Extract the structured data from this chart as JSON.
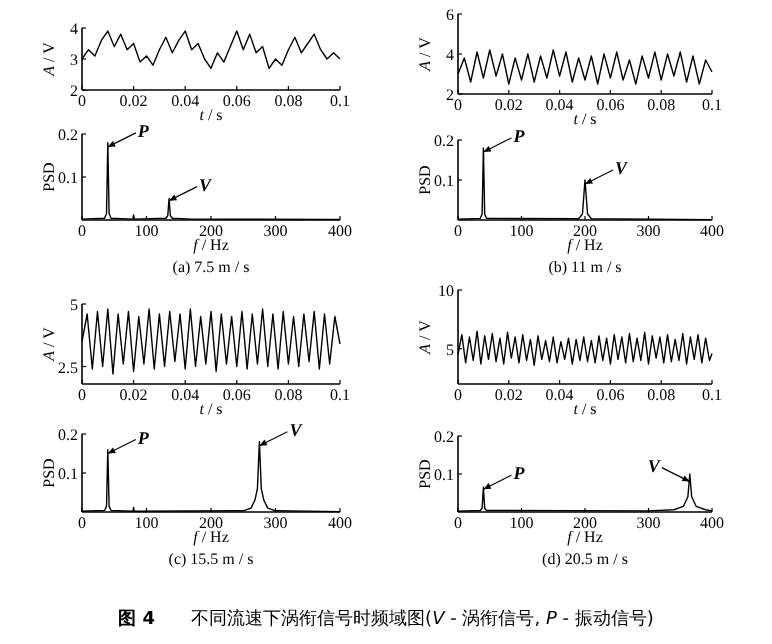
{
  "chart_data": [
    {
      "type": "line",
      "xlabel": "*t* / s",
      "ylabel": "*A* / V",
      "color": "#000000",
      "xlim": [
        0,
        0.1
      ],
      "ylim": [
        2,
        4
      ],
      "xticks": [
        0,
        0.02,
        0.04,
        0.06,
        0.08,
        0.1
      ],
      "yticks": [
        2,
        3,
        4
      ],
      "x": [
        0,
        0.0025,
        0.005,
        0.0075,
        0.01,
        0.0125,
        0.015,
        0.0175,
        0.02,
        0.0225,
        0.025,
        0.0275,
        0.03,
        0.0325,
        0.035,
        0.0375,
        0.04,
        0.0425,
        0.045,
        0.0475,
        0.05,
        0.0525,
        0.055,
        0.0575,
        0.06,
        0.0625,
        0.065,
        0.0675,
        0.07,
        0.0725,
        0.075,
        0.0775,
        0.08,
        0.0825,
        0.085,
        0.0875,
        0.09,
        0.0925,
        0.095,
        0.0975,
        0.1
      ],
      "values": [
        3.0,
        3.3,
        3.1,
        3.6,
        3.9,
        3.4,
        3.8,
        3.3,
        3.5,
        2.9,
        3.1,
        2.8,
        3.3,
        3.7,
        3.2,
        3.6,
        3.9,
        3.3,
        3.5,
        3.0,
        2.7,
        3.2,
        2.9,
        3.4,
        3.9,
        3.3,
        3.8,
        3.2,
        3.4,
        2.7,
        3.0,
        2.8,
        3.3,
        3.7,
        3.2,
        3.5,
        3.8,
        3.3,
        3.0,
        3.2,
        3.0
      ]
    },
    {
      "type": "line",
      "xlabel": "*t* / s",
      "ylabel": "*A* / V",
      "color": "#000000",
      "xlim": [
        0,
        0.1
      ],
      "ylim": [
        2,
        6
      ],
      "xticks": [
        0,
        0.02,
        0.04,
        0.06,
        0.08,
        0.1
      ],
      "yticks": [
        2,
        4,
        6
      ],
      "x": [
        0,
        0.0025,
        0.005,
        0.0075,
        0.01,
        0.0125,
        0.015,
        0.0175,
        0.02,
        0.0225,
        0.025,
        0.0275,
        0.03,
        0.0325,
        0.035,
        0.0375,
        0.04,
        0.0425,
        0.045,
        0.0475,
        0.05,
        0.0525,
        0.055,
        0.0575,
        0.06,
        0.0625,
        0.065,
        0.0675,
        0.07,
        0.0725,
        0.075,
        0.0775,
        0.08,
        0.0825,
        0.085,
        0.0875,
        0.09,
        0.0925,
        0.095,
        0.0975,
        0.1
      ],
      "values": [
        3.0,
        3.8,
        2.6,
        4.1,
        2.8,
        4.2,
        2.9,
        4.0,
        2.5,
        3.8,
        2.7,
        4.0,
        2.6,
        3.9,
        2.8,
        4.2,
        2.9,
        4.1,
        2.6,
        3.8,
        2.7,
        3.9,
        2.5,
        4.0,
        2.8,
        4.1,
        2.7,
        3.7,
        2.5,
        3.9,
        2.8,
        4.1,
        2.7,
        4.0,
        2.9,
        4.1,
        2.6,
        3.9,
        2.5,
        3.7,
        3.1
      ]
    },
    {
      "type": "line",
      "title": "(a) 7.5 m / s",
      "xlabel": "*f* / Hz",
      "ylabel": "PSD",
      "color": "#000000",
      "xlim": [
        0,
        400
      ],
      "ylim": [
        0,
        0.2
      ],
      "xticks": [
        0,
        100,
        200,
        300,
        400
      ],
      "yticks": [
        0.1,
        0.2
      ],
      "x": [
        0,
        35,
        38,
        40,
        42,
        45,
        79,
        80,
        81,
        130,
        133,
        135,
        137,
        140,
        170,
        400
      ],
      "values": [
        0.002,
        0.004,
        0.015,
        0.18,
        0.015,
        0.004,
        0.002,
        0.012,
        0.002,
        0.004,
        0.01,
        0.05,
        0.01,
        0.004,
        0.002,
        0.001
      ],
      "annotations": [
        {
          "text": "*P*",
          "x": 40,
          "y": 0.17
        },
        {
          "text": "*V*",
          "x": 135,
          "y": 0.045
        }
      ]
    },
    {
      "type": "line",
      "title": "(b) 11 m / s",
      "xlabel": "*f* / Hz",
      "ylabel": "PSD",
      "color": "#000000",
      "xlim": [
        0,
        400
      ],
      "ylim": [
        0,
        0.2
      ],
      "xticks": [
        0,
        100,
        200,
        300,
        400
      ],
      "yticks": [
        0.1,
        0.2
      ],
      "x": [
        0,
        35,
        38,
        40,
        42,
        45,
        190,
        196,
        200,
        204,
        210,
        400
      ],
      "values": [
        0.002,
        0.004,
        0.015,
        0.18,
        0.015,
        0.004,
        0.003,
        0.015,
        0.1,
        0.015,
        0.003,
        0.001
      ],
      "annotations": [
        {
          "text": "*P*",
          "x": 40,
          "y": 0.17
        },
        {
          "text": "*V*",
          "x": 200,
          "y": 0.09
        }
      ]
    },
    {
      "type": "line",
      "xlabel": "*t* / s",
      "ylabel": "*A* / V",
      "color": "#000000",
      "xlim": [
        0,
        0.1
      ],
      "ylim": [
        1.8,
        5
      ],
      "xticks": [
        0,
        0.02,
        0.04,
        0.06,
        0.08,
        0.1
      ],
      "yticks": [
        2.5,
        5
      ],
      "x": [
        0,
        0.002,
        0.004,
        0.006,
        0.008,
        0.01,
        0.012,
        0.014,
        0.016,
        0.018,
        0.02,
        0.022,
        0.024,
        0.026,
        0.028,
        0.03,
        0.032,
        0.034,
        0.036,
        0.038,
        0.04,
        0.042,
        0.044,
        0.046,
        0.048,
        0.05,
        0.052,
        0.054,
        0.056,
        0.058,
        0.06,
        0.062,
        0.064,
        0.066,
        0.068,
        0.07,
        0.072,
        0.074,
        0.076,
        0.078,
        0.08,
        0.082,
        0.084,
        0.086,
        0.088,
        0.09,
        0.092,
        0.094,
        0.096,
        0.098,
        0.1
      ],
      "values": [
        3.5,
        4.6,
        2.4,
        4.7,
        2.5,
        4.8,
        2.2,
        4.6,
        2.6,
        4.7,
        2.3,
        4.5,
        2.6,
        4.8,
        2.4,
        4.6,
        2.5,
        4.7,
        2.7,
        4.6,
        2.4,
        4.8,
        2.5,
        4.5,
        2.6,
        4.7,
        2.3,
        4.6,
        2.6,
        4.5,
        2.5,
        4.7,
        2.4,
        4.6,
        2.6,
        4.8,
        2.5,
        4.6,
        2.4,
        4.7,
        2.6,
        4.5,
        2.5,
        4.6,
        2.7,
        4.7,
        2.4,
        4.6,
        2.6,
        4.5,
        3.4
      ]
    },
    {
      "type": "line",
      "xlabel": "*t* / s",
      "ylabel": "*A* / V",
      "color": "#000000",
      "xlim": [
        0,
        0.1
      ],
      "ylim": [
        2,
        10
      ],
      "xticks": [
        0,
        0.02,
        0.04,
        0.06,
        0.08,
        0.1
      ],
      "yticks": [
        5,
        10
      ],
      "x": [
        0,
        0.0015,
        0.003,
        0.0045,
        0.006,
        0.0075,
        0.009,
        0.0105,
        0.012,
        0.0135,
        0.015,
        0.0165,
        0.018,
        0.0195,
        0.021,
        0.0225,
        0.024,
        0.0255,
        0.027,
        0.0285,
        0.03,
        0.0315,
        0.033,
        0.0345,
        0.036,
        0.0375,
        0.039,
        0.0405,
        0.042,
        0.0435,
        0.045,
        0.0465,
        0.048,
        0.0495,
        0.051,
        0.0525,
        0.054,
        0.0555,
        0.057,
        0.0585,
        0.06,
        0.0615,
        0.063,
        0.0645,
        0.066,
        0.0675,
        0.069,
        0.0705,
        0.072,
        0.0735,
        0.075,
        0.0765,
        0.078,
        0.0795,
        0.081,
        0.0825,
        0.084,
        0.0855,
        0.087,
        0.0885,
        0.09,
        0.0915,
        0.093,
        0.0945,
        0.096,
        0.0975,
        0.099,
        0.1
      ],
      "values": [
        4.5,
        6.2,
        3.8,
        6.0,
        4.0,
        6.5,
        3.7,
        6.1,
        4.1,
        6.3,
        3.9,
        5.9,
        3.7,
        6.4,
        4.2,
        6.0,
        3.8,
        6.2,
        4.0,
        5.8,
        3.6,
        6.1,
        4.1,
        5.7,
        3.9,
        6.0,
        3.8,
        5.6,
        4.1,
        5.9,
        3.7,
        5.8,
        4.0,
        6.0,
        3.9,
        5.7,
        3.8,
        6.1,
        4.0,
        5.9,
        3.7,
        6.2,
        4.1,
        6.0,
        3.8,
        6.3,
        3.9,
        5.9,
        4.0,
        6.4,
        3.7,
        6.1,
        4.2,
        6.0,
        3.8,
        6.2,
        3.9,
        5.8,
        4.0,
        6.3,
        3.7,
        6.0,
        4.1,
        6.2,
        3.8,
        5.9,
        4.0,
        4.6
      ]
    },
    {
      "type": "line",
      "title": "(c) 15.5 m / s",
      "xlabel": "*f* / Hz",
      "ylabel": "PSD",
      "color": "#000000",
      "xlim": [
        0,
        400
      ],
      "ylim": [
        0,
        0.2
      ],
      "xticks": [
        0,
        100,
        200,
        300,
        400
      ],
      "yticks": [
        0.1,
        0.2
      ],
      "x": [
        0,
        35,
        38,
        40,
        42,
        45,
        79,
        80,
        81,
        250,
        262,
        268,
        272,
        275,
        278,
        282,
        288,
        300,
        400
      ],
      "values": [
        0.002,
        0.004,
        0.015,
        0.16,
        0.015,
        0.004,
        0.002,
        0.012,
        0.002,
        0.003,
        0.01,
        0.03,
        0.06,
        0.18,
        0.06,
        0.03,
        0.01,
        0.003,
        0.001
      ],
      "annotations": [
        {
          "text": "*P*",
          "x": 40,
          "y": 0.15
        },
        {
          "text": "*V*",
          "x": 275,
          "y": 0.17
        }
      ]
    },
    {
      "type": "line",
      "title": "(d) 20.5 m / s",
      "xlabel": "*f* / Hz",
      "ylabel": "PSD",
      "color": "#000000",
      "xlim": [
        0,
        400
      ],
      "ylim": [
        0,
        0.2
      ],
      "xticks": [
        0,
        100,
        200,
        300,
        400
      ],
      "yticks": [
        0.1,
        0.2
      ],
      "x": [
        0,
        35,
        38,
        40,
        42,
        45,
        300,
        340,
        355,
        362,
        365,
        368,
        375,
        390,
        400
      ],
      "values": [
        0.002,
        0.004,
        0.01,
        0.065,
        0.01,
        0.004,
        0.003,
        0.006,
        0.015,
        0.04,
        0.1,
        0.04,
        0.015,
        0.006,
        0.003
      ],
      "annotations": [
        {
          "text": "*P*",
          "x": 40,
          "y": 0.06
        },
        {
          "text": "*V*",
          "x": 365,
          "y": 0.08
        },
        "**图 4**　　不同流速下涡衔信号时频域图(*V* - 涡衔信号, *P* - 振动信号)"
      ]
    }
  ]
}
